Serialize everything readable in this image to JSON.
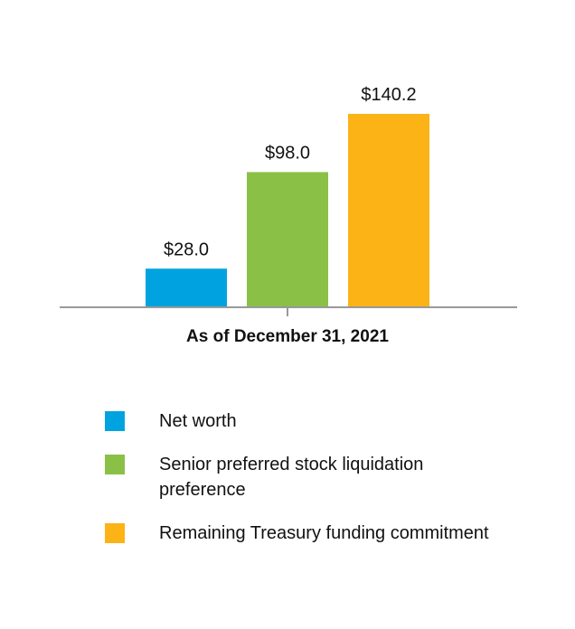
{
  "chart_data": {
    "type": "bar",
    "categories": [
      "As of December 31, 2021"
    ],
    "series": [
      {
        "name": "Net worth",
        "values": [
          28.0
        ],
        "label": "$28.0",
        "color": "#00a3e0"
      },
      {
        "name": "Senior preferred stock liquidation preference",
        "values": [
          98.0
        ],
        "label": "$98.0",
        "color": "#8bc047"
      },
      {
        "name": "Remaining Treasury funding commitment",
        "values": [
          140.2
        ],
        "label": "$140.2",
        "color": "#fbb316"
      }
    ],
    "xlabel": "As of December 31, 2021",
    "ylabel": "",
    "ylim": [
      0,
      160
    ],
    "grid": false,
    "legend_position": "bottom"
  },
  "legend": {
    "items": [
      {
        "label": "Net worth",
        "color": "#00a3e0"
      },
      {
        "label": "Senior preferred stock liquidation preference",
        "color": "#8bc047"
      },
      {
        "label": "Remaining Treasury funding commitment",
        "color": "#fbb316"
      }
    ]
  },
  "colors": {
    "axis": "#999999"
  }
}
